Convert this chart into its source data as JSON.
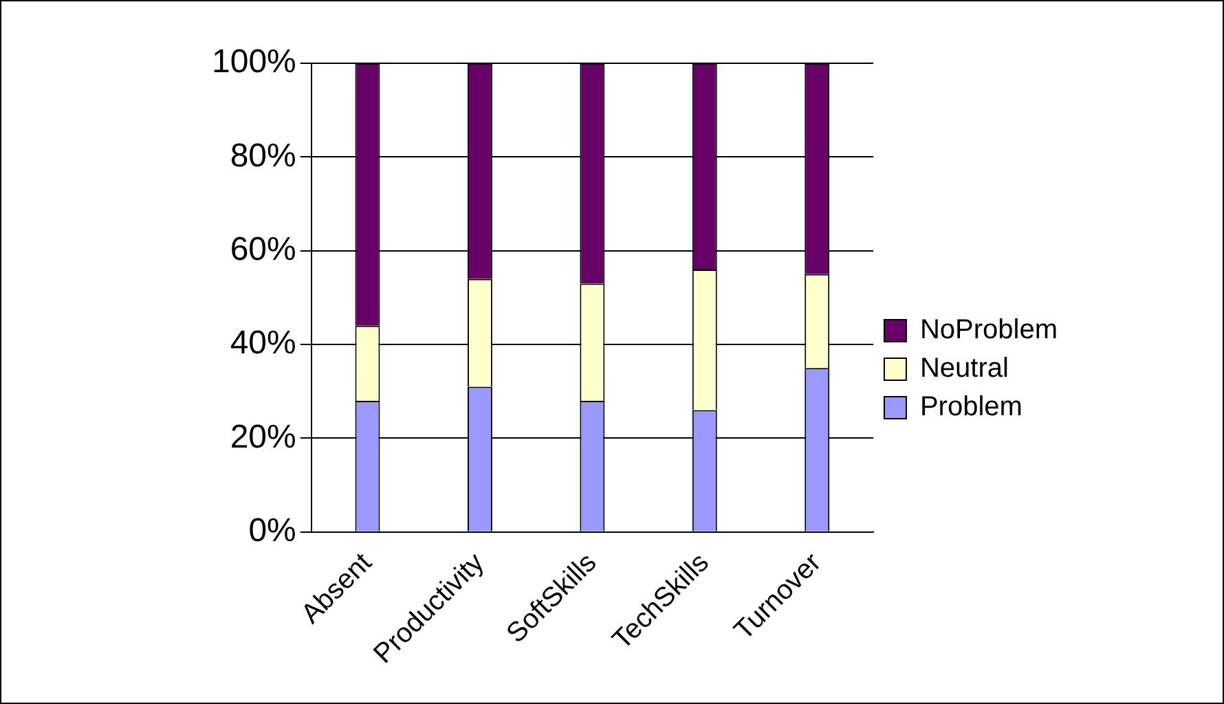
{
  "chart_data": {
    "type": "bar",
    "stacked": true,
    "categories": [
      "Absent",
      "Productivity",
      "SoftSkills",
      "TechSkills",
      "Turnover"
    ],
    "series": [
      {
        "name": "Problem",
        "color": "#9999ff",
        "values": [
          28,
          31,
          28,
          26,
          35
        ]
      },
      {
        "name": "Neutral",
        "color": "#ffffcc",
        "values": [
          16,
          23,
          25,
          30,
          20
        ]
      },
      {
        "name": "NoProblem",
        "color": "#660066",
        "values": [
          56,
          46,
          47,
          44,
          45
        ]
      }
    ],
    "ylim": [
      0,
      100
    ],
    "yticks": [
      {
        "value": 0,
        "label": "0%"
      },
      {
        "value": 20,
        "label": "20%"
      },
      {
        "value": 40,
        "label": "40%"
      },
      {
        "value": 60,
        "label": "60%"
      },
      {
        "value": 80,
        "label": "80%"
      },
      {
        "value": 100,
        "label": "100%"
      }
    ],
    "grid": "y",
    "legend": "right"
  }
}
